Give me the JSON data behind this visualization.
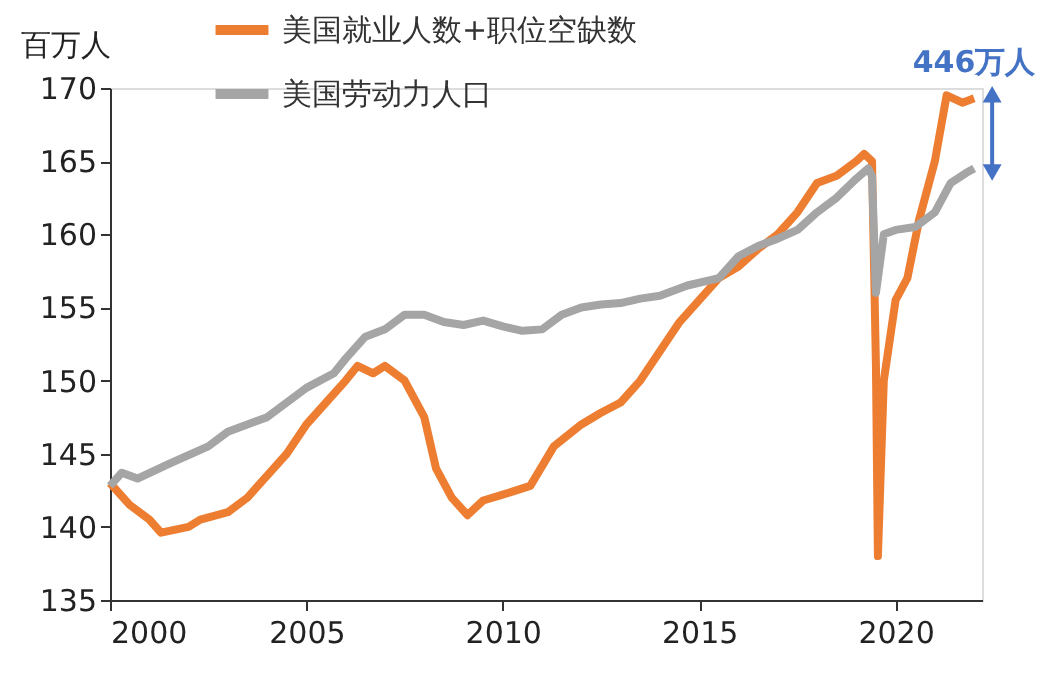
{
  "chart_data": {
    "type": "line",
    "ylabel": "百万人",
    "xlim": [
      2000,
      2022.2
    ],
    "xticks": [
      2000,
      2005,
      2010,
      2015,
      2020
    ],
    "ylim": [
      135,
      170
    ],
    "yticks": [
      135,
      140,
      145,
      150,
      155,
      160,
      165,
      170
    ],
    "grid": false,
    "legend": "top left",
    "line_style": "solid",
    "marker": "none",
    "annotations": [
      "446万人"
    ],
    "series": [
      {
        "name": "美国就业人数+职位空缺数",
        "color": "#ed7d31",
        "x": [
          2000.0,
          2000.5,
          2001.0,
          2001.3,
          2002.0,
          2002.3,
          2003.0,
          2003.5,
          2004.0,
          2004.5,
          2005.0,
          2005.5,
          2006.0,
          2006.3,
          2006.7,
          2007.0,
          2007.5,
          2008.0,
          2008.3,
          2008.7,
          2009.1,
          2009.5,
          2010.0,
          2010.7,
          2011.3,
          2012.0,
          2012.5,
          2013.0,
          2013.5,
          2014.0,
          2014.5,
          2015.0,
          2015.5,
          2016.0,
          2016.5,
          2017.0,
          2017.5,
          2018.0,
          2018.5,
          2019.0,
          2019.2,
          2019.4,
          2019.5,
          2019.55,
          2019.7,
          2020.0,
          2020.3,
          2020.6,
          2021.0,
          2021.3,
          2021.7,
          2022.0
        ],
        "values": [
          143,
          141.5,
          140.5,
          139.6,
          140,
          140.5,
          141,
          142,
          143.5,
          145,
          147,
          148.5,
          150,
          151,
          150.5,
          151,
          150,
          147.5,
          144,
          142,
          140.8,
          141.8,
          142.2,
          142.8,
          145.5,
          147,
          147.8,
          148.5,
          150,
          152,
          154,
          155.5,
          157,
          157.8,
          159,
          160,
          161.5,
          163.5,
          164,
          165,
          165.5,
          165,
          151,
          138,
          150,
          155.5,
          157,
          161,
          165,
          169.5,
          169,
          169.3
        ]
      },
      {
        "name": "美国劳动力人口",
        "color": "#a5a5a5",
        "x": [
          2000.0,
          2000.3,
          2000.7,
          2001.5,
          2002.5,
          2003.0,
          2004.0,
          2005.0,
          2005.7,
          2006.0,
          2006.5,
          2007.0,
          2007.5,
          2008.0,
          2008.5,
          2009.0,
          2009.5,
          2010.0,
          2010.5,
          2011.0,
          2011.5,
          2012.0,
          2012.5,
          2013.0,
          2013.5,
          2014.0,
          2014.7,
          2015.5,
          2016.0,
          2016.5,
          2017.0,
          2017.5,
          2018.0,
          2018.5,
          2019.0,
          2019.3,
          2019.4,
          2019.5,
          2019.7,
          2020.0,
          2020.5,
          2021.0,
          2021.4,
          2021.8,
          2022.0
        ],
        "values": [
          142.8,
          143.7,
          143.3,
          144.3,
          145.5,
          146.5,
          147.5,
          149.5,
          150.5,
          151.5,
          153,
          153.5,
          154.5,
          154.5,
          154,
          153.8,
          154.1,
          153.7,
          153.4,
          153.5,
          154.5,
          155,
          155.2,
          155.3,
          155.6,
          155.8,
          156.5,
          157,
          158.5,
          159.2,
          159.7,
          160.3,
          161.5,
          162.5,
          163.8,
          164.5,
          164,
          156,
          160,
          160.3,
          160.5,
          161.5,
          163.5,
          164.2,
          164.5
        ]
      }
    ]
  }
}
